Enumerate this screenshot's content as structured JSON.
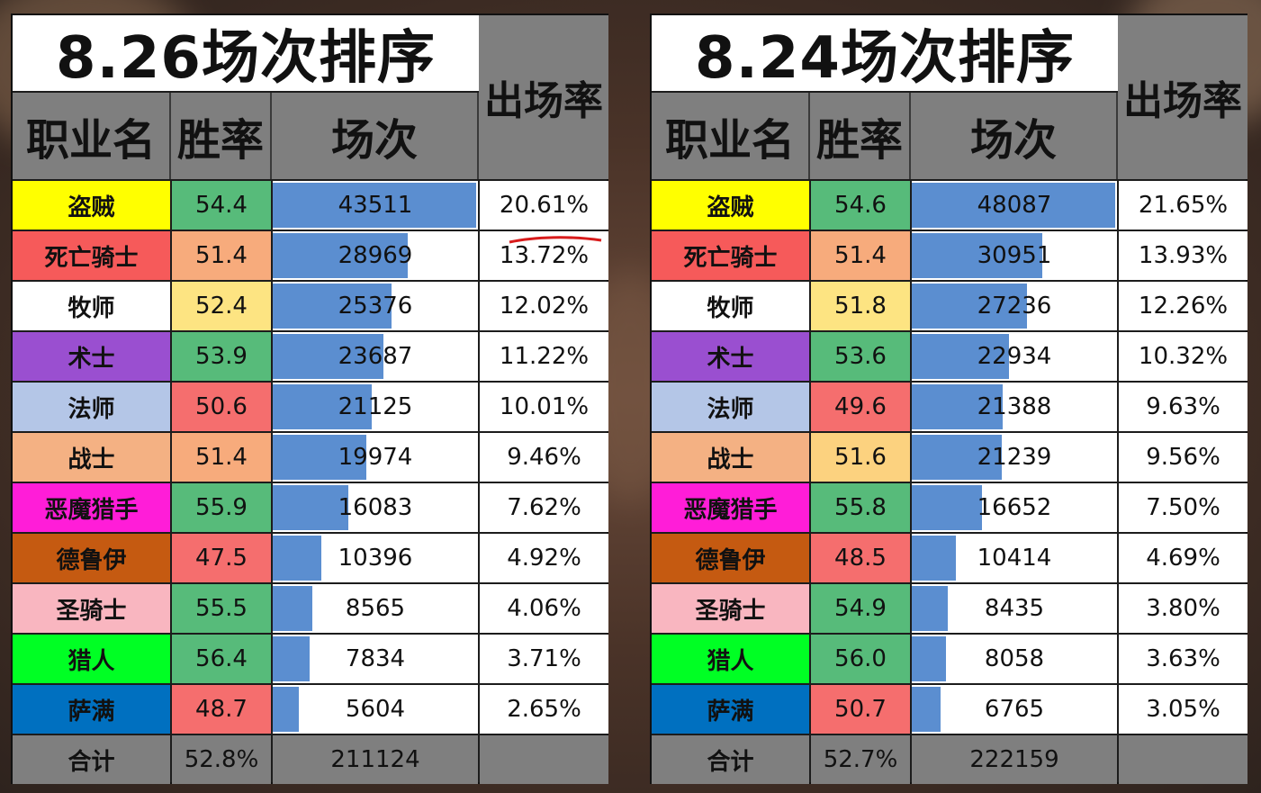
{
  "panels": [
    {
      "title": "8.26场次排序",
      "headers": {
        "name": "职业名",
        "rate": "胜率",
        "games": "场次",
        "share": "出场率"
      },
      "rows": [
        {
          "name": "盗贼",
          "name_color": "#ffff00",
          "rate": "54.4",
          "rate_color": "#57bb7a",
          "games": "43511",
          "games_value": 43511,
          "share": "20.61%"
        },
        {
          "name": "死亡骑士",
          "name_color": "#f65a5a",
          "rate": "51.4",
          "rate_color": "#f7ab7c",
          "games": "28969",
          "games_value": 28969,
          "share": "13.72%"
        },
        {
          "name": "牧师",
          "name_color": "#ffffff",
          "rate": "52.4",
          "rate_color": "#fde482",
          "games": "25376",
          "games_value": 25376,
          "share": "12.02%"
        },
        {
          "name": "术士",
          "name_color": "#9a4fd0",
          "rate": "53.9",
          "rate_color": "#57bb7a",
          "games": "23687",
          "games_value": 23687,
          "share": "11.22%"
        },
        {
          "name": "法师",
          "name_color": "#b4c6e7",
          "rate": "50.6",
          "rate_color": "#f56e6e",
          "games": "21125",
          "games_value": 21125,
          "share": "10.01%"
        },
        {
          "name": "战士",
          "name_color": "#f4b183",
          "rate": "51.4",
          "rate_color": "#f7ab7c",
          "games": "19974",
          "games_value": 19974,
          "share": "9.46%"
        },
        {
          "name": "恶魔猎手",
          "name_color": "#ff1dd8",
          "rate": "55.9",
          "rate_color": "#57bb7a",
          "games": "16083",
          "games_value": 16083,
          "share": "7.62%"
        },
        {
          "name": "德鲁伊",
          "name_color": "#c55a11",
          "rate": "47.5",
          "rate_color": "#f56e6e",
          "games": "10396",
          "games_value": 10396,
          "share": "4.92%"
        },
        {
          "name": "圣骑士",
          "name_color": "#f9b6c0",
          "rate": "55.5",
          "rate_color": "#57bb7a",
          "games": "8565",
          "games_value": 8565,
          "share": "4.06%"
        },
        {
          "name": "猎人",
          "name_color": "#00ff24",
          "rate": "56.4",
          "rate_color": "#57bb7a",
          "games": "7834",
          "games_value": 7834,
          "share": "3.71%"
        },
        {
          "name": "萨满",
          "name_color": "#0070c0",
          "rate": "48.7",
          "rate_color": "#f56e6e",
          "games": "5604",
          "games_value": 5604,
          "share": "2.65%"
        }
      ],
      "total": {
        "label": "合计",
        "rate": "52.8%",
        "games": "211124",
        "share": ""
      }
    },
    {
      "title": "8.24场次排序",
      "headers": {
        "name": "职业名",
        "rate": "胜率",
        "games": "场次",
        "share": "出场率"
      },
      "rows": [
        {
          "name": "盗贼",
          "name_color": "#ffff00",
          "rate": "54.6",
          "rate_color": "#57bb7a",
          "games": "48087",
          "games_value": 48087,
          "share": "21.65%"
        },
        {
          "name": "死亡骑士",
          "name_color": "#f65a5a",
          "rate": "51.4",
          "rate_color": "#f7ab7c",
          "games": "30951",
          "games_value": 30951,
          "share": "13.93%"
        },
        {
          "name": "牧师",
          "name_color": "#ffffff",
          "rate": "51.8",
          "rate_color": "#fde482",
          "games": "27236",
          "games_value": 27236,
          "share": "12.26%"
        },
        {
          "name": "术士",
          "name_color": "#9a4fd0",
          "rate": "53.6",
          "rate_color": "#57bb7a",
          "games": "22934",
          "games_value": 22934,
          "share": "10.32%"
        },
        {
          "name": "法师",
          "name_color": "#b4c6e7",
          "rate": "49.6",
          "rate_color": "#f56e6e",
          "games": "21388",
          "games_value": 21388,
          "share": "9.63%"
        },
        {
          "name": "战士",
          "name_color": "#f4b183",
          "rate": "51.6",
          "rate_color": "#fcd27f",
          "games": "21239",
          "games_value": 21239,
          "share": "9.56%"
        },
        {
          "name": "恶魔猎手",
          "name_color": "#ff1dd8",
          "rate": "55.8",
          "rate_color": "#57bb7a",
          "games": "16652",
          "games_value": 16652,
          "share": "7.50%"
        },
        {
          "name": "德鲁伊",
          "name_color": "#c55a11",
          "rate": "48.5",
          "rate_color": "#f56e6e",
          "games": "10414",
          "games_value": 10414,
          "share": "4.69%"
        },
        {
          "name": "圣骑士",
          "name_color": "#f9b6c0",
          "rate": "54.9",
          "rate_color": "#57bb7a",
          "games": "8435",
          "games_value": 8435,
          "share": "3.80%"
        },
        {
          "name": "猎人",
          "name_color": "#00ff24",
          "rate": "56.0",
          "rate_color": "#57bb7a",
          "games": "8058",
          "games_value": 8058,
          "share": "3.63%"
        },
        {
          "name": "萨满",
          "name_color": "#0070c0",
          "rate": "50.7",
          "rate_color": "#f56e6e",
          "games": "6765",
          "games_value": 6765,
          "share": "3.05%"
        }
      ],
      "total": {
        "label": "合计",
        "rate": "52.7%",
        "games": "222159",
        "share": ""
      }
    }
  ],
  "chart_data": [
    {
      "type": "table",
      "title": "8.26场次排序",
      "columns": [
        "职业名",
        "胜率",
        "场次",
        "出场率"
      ],
      "categories": [
        "盗贼",
        "死亡骑士",
        "牧师",
        "术士",
        "法师",
        "战士",
        "恶魔猎手",
        "德鲁伊",
        "圣骑士",
        "猎人",
        "萨满"
      ],
      "series": [
        {
          "name": "胜率",
          "values": [
            54.4,
            51.4,
            52.4,
            53.9,
            50.6,
            51.4,
            55.9,
            47.5,
            55.5,
            56.4,
            48.7
          ]
        },
        {
          "name": "场次",
          "values": [
            43511,
            28969,
            25376,
            23687,
            21125,
            19974,
            16083,
            10396,
            8565,
            7834,
            5604
          ]
        },
        {
          "name": "出场率",
          "values": [
            20.61,
            13.72,
            12.02,
            11.22,
            10.01,
            9.46,
            7.62,
            4.92,
            4.06,
            3.71,
            2.65
          ]
        }
      ],
      "total": {
        "胜率": "52.8%",
        "场次": 211124
      }
    },
    {
      "type": "table",
      "title": "8.24场次排序",
      "columns": [
        "职业名",
        "胜率",
        "场次",
        "出场率"
      ],
      "categories": [
        "盗贼",
        "死亡骑士",
        "牧师",
        "术士",
        "法师",
        "战士",
        "恶魔猎手",
        "德鲁伊",
        "圣骑士",
        "猎人",
        "萨满"
      ],
      "series": [
        {
          "name": "胜率",
          "values": [
            54.6,
            51.4,
            51.8,
            53.6,
            49.6,
            51.6,
            55.8,
            48.5,
            54.9,
            56.0,
            50.7
          ]
        },
        {
          "name": "场次",
          "values": [
            48087,
            30951,
            27236,
            22934,
            21388,
            21239,
            16652,
            10414,
            8435,
            8058,
            6765
          ]
        },
        {
          "name": "出场率",
          "values": [
            21.65,
            13.93,
            12.26,
            10.32,
            9.63,
            9.56,
            7.5,
            4.69,
            3.8,
            3.63,
            3.05
          ]
        }
      ],
      "total": {
        "胜率": "52.7%",
        "场次": 222159
      }
    }
  ]
}
